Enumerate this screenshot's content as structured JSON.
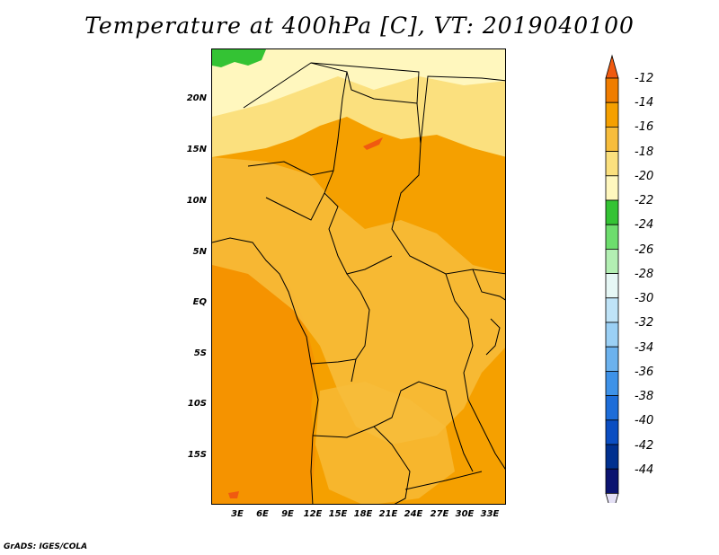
{
  "title": "Temperature at 400hPa [C], VT: 2019040100",
  "credit": "GrADS: IGES/COLA",
  "map": {
    "latitude_labels": [
      "20N",
      "15N",
      "10N",
      "5N",
      "EQ",
      "5S",
      "10S",
      "15S"
    ],
    "longitude_labels": [
      "3E",
      "6E",
      "9E",
      "12E",
      "15E",
      "18E",
      "21E",
      "24E",
      "27E",
      "30E",
      "33E"
    ]
  },
  "colorbar": {
    "labels": [
      "-12",
      "-14",
      "-16",
      "-18",
      "-20",
      "-22",
      "-24",
      "-26",
      "-28",
      "-30",
      "-32",
      "-34",
      "-36",
      "-38",
      "-40",
      "-42",
      "-44"
    ],
    "colors": [
      "#f05a10",
      "#f07d00",
      "#f5a000",
      "#f7bd3c",
      "#fbe07e",
      "#fff7be",
      "#34c334",
      "#6ddd6d",
      "#b3efb3",
      "#e6f7f5",
      "#bfe3f7",
      "#9bd0f5",
      "#6cb2ee",
      "#3e92e8",
      "#1d6dd9",
      "#0b4ec2",
      "#00308f",
      "#0b1370",
      "#e4e0f5"
    ]
  }
}
